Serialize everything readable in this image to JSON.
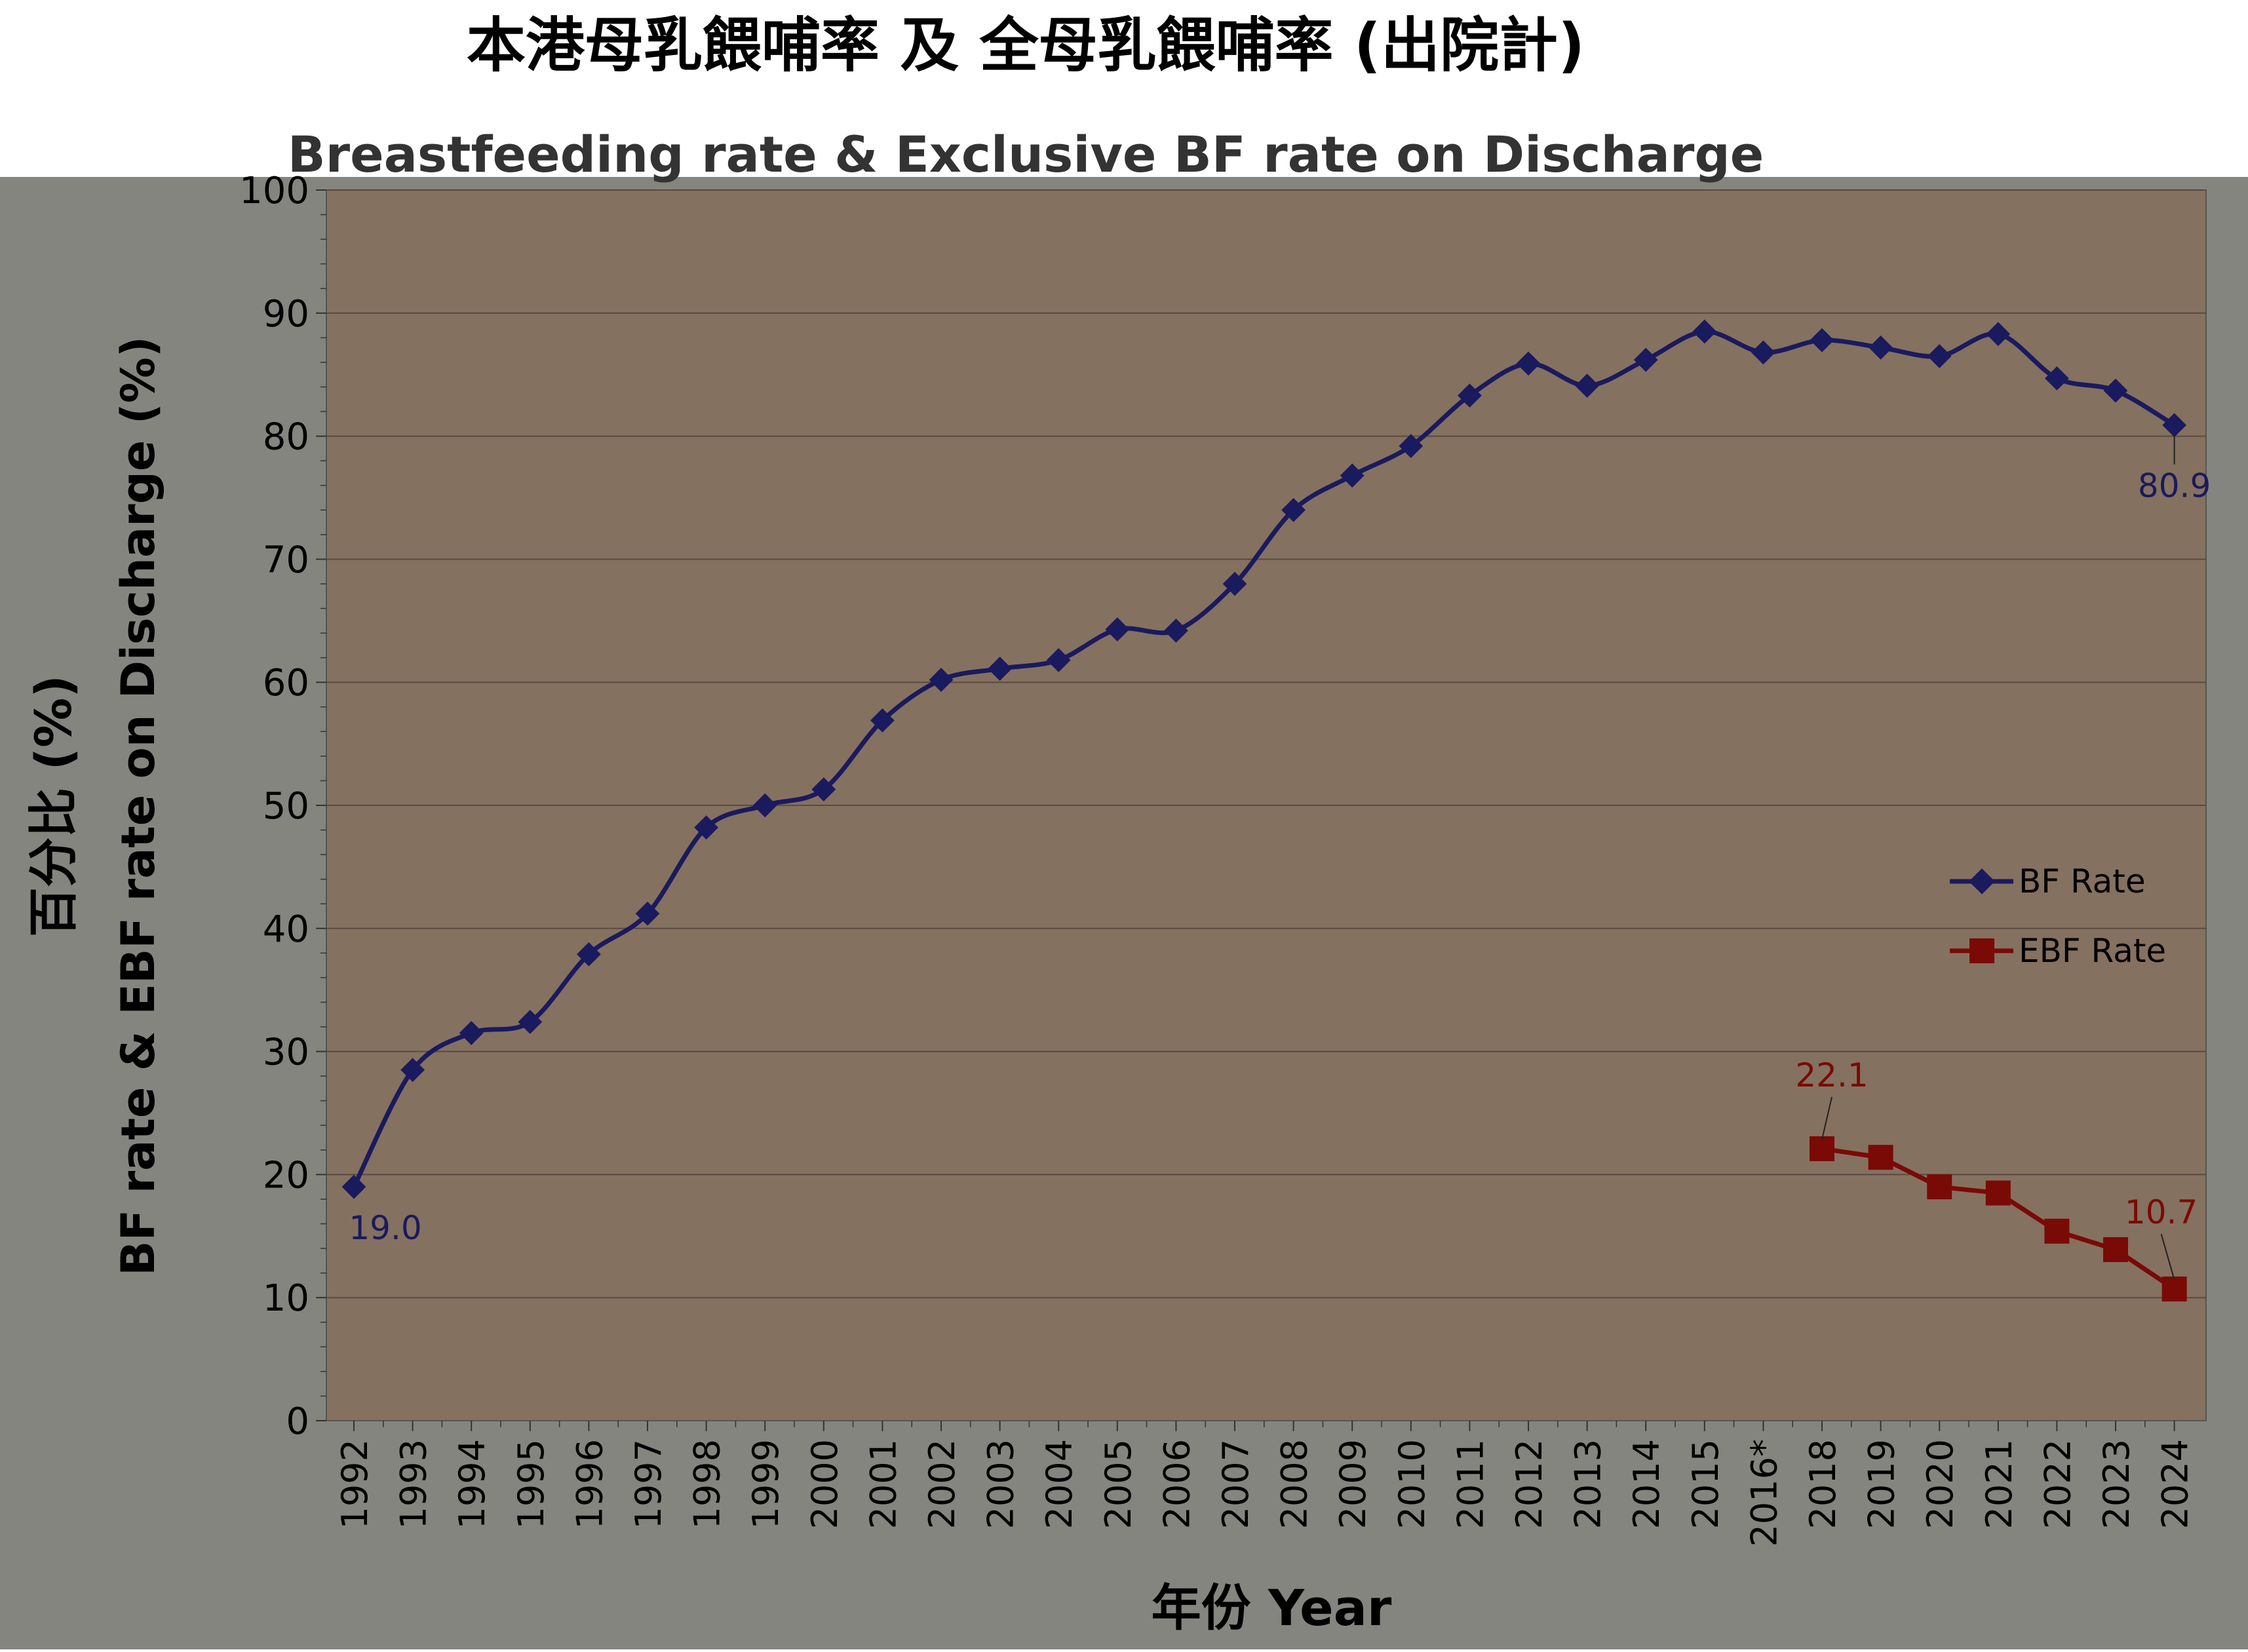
{
  "chart_data": {
    "type": "line",
    "title": "本港母乳餵哺率 及 全母乳餵哺率 (出院計)",
    "subtitle": "Breastfeeding rate & Exclusive BF rate on Discharge",
    "ylabel_zh": "百分比 (%)",
    "ylabel_en": "BF rate & EBF rate on Discharge (%)",
    "xlabel": "年份 Year",
    "ylim": [
      0,
      100
    ],
    "ytick_step": 10,
    "grid": true,
    "legend_position": "right",
    "categories": [
      "1992",
      "1993",
      "1994",
      "1995",
      "1996",
      "1997",
      "1998",
      "1999",
      "2000",
      "2001",
      "2002",
      "2003",
      "2004",
      "2005",
      "2006",
      "2007",
      "2008",
      "2009",
      "2010",
      "2011",
      "2012",
      "2013",
      "2014",
      "2015",
      "2016*",
      "2018",
      "2019",
      "2020",
      "2021",
      "2022",
      "2023",
      "2024"
    ],
    "series": [
      {
        "name": "BF Rate",
        "color": "#1a1a5e",
        "marker": "diamond",
        "values": [
          19.0,
          28.5,
          31.5,
          32.4,
          37.9,
          41.2,
          48.2,
          50.0,
          51.3,
          56.9,
          60.2,
          61.1,
          61.8,
          64.3,
          64.2,
          68.0,
          74.0,
          76.8,
          79.2,
          83.3,
          85.9,
          84.1,
          86.2,
          88.5,
          86.8,
          87.8,
          87.2,
          86.5,
          88.3,
          84.7,
          83.7,
          80.9
        ]
      },
      {
        "name": "EBF Rate",
        "color": "#7a0a05",
        "marker": "square",
        "values": [
          null,
          null,
          null,
          null,
          null,
          null,
          null,
          null,
          null,
          null,
          null,
          null,
          null,
          null,
          null,
          null,
          null,
          null,
          null,
          null,
          null,
          null,
          null,
          null,
          null,
          22.1,
          21.4,
          19.0,
          18.5,
          15.4,
          13.9,
          10.7
        ]
      }
    ],
    "data_labels": [
      {
        "series": "BF Rate",
        "category": "1992",
        "text": "19.0"
      },
      {
        "series": "BF Rate",
        "category": "2024",
        "text": "80.9"
      },
      {
        "series": "EBF Rate",
        "category": "2018",
        "text": "22.1"
      },
      {
        "series": "EBF Rate",
        "category": "2024",
        "text": "10.7"
      }
    ],
    "colors": {
      "plot_background": "#857160",
      "outer_background": "#858580",
      "gridline": "#5a4a40",
      "axis_text": "#000000",
      "title_text": "#000000",
      "subtitle_text": "#333333"
    }
  }
}
